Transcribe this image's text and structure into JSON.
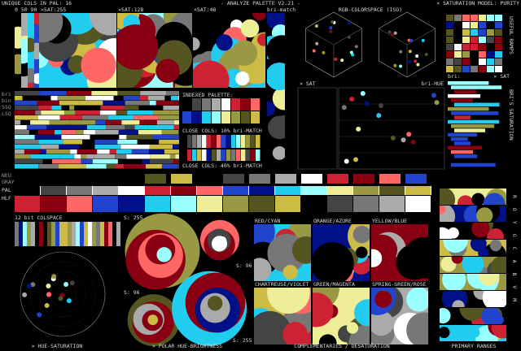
{
  "header": {
    "unique": "UNIQUE COLS IN PAL: 16",
    "title": "- ANALYZE PALETTE V2.21 -",
    "model": "× SATURATION MODEL: PURITY"
  },
  "palette": [
    "#000000",
    "#444444",
    "#777777",
    "#aaaaaa",
    "#ffffff",
    "#cc2233",
    "#880011",
    "#ff6666",
    "#2244cc",
    "#001188",
    "#22ccee",
    "#99ffff",
    "#eeee99",
    "#999944",
    "#555522",
    "#ccbb44"
  ],
  "labels": {
    "sat0": "0 50 90",
    "sat255": "×SAT:255",
    "sat128": "×SAT:128",
    "sat48": "×SAT:48",
    "brimatch": "bri-match",
    "rgb": "RGB-COLORSPACE (ISO)",
    "ramps": "USEFUL RAMPS",
    "indexed": "INDEXED PALETTE:",
    "close10": "CLOSE COLS: 10% bri-MATCH",
    "close40": "CLOSE COLS: 40% bri-MATCH",
    "xsat": "× SAT",
    "brihue": "bri-HUE",
    "bri": "bri:",
    "xsat2": "× SAT",
    "brisat": "BRI'S SATURATION",
    "left1": "bri",
    "left2": "bin",
    "left3": "55Q",
    "left4": "LSQ",
    "neu": "NEU",
    "gray": "GRAY",
    "pal": "PAL",
    "hlf": "HLF",
    "colspace": "12 bit COLSPACE",
    "s1": "S: 255",
    "s2": "S: 96",
    "s3": "S: 96",
    "s4": "S: 255",
    "hues": "ROYGCABVM"
  },
  "pairs": [
    "RED/CYAN",
    "ORANGE/AZURE",
    "YELLOW/BLUE",
    "CHARTREUSE/VIOLET",
    "GREEN/MAGENTA",
    "SPRING-GREEN/ROSE"
  ],
  "footer": [
    "× HUE-SATURATION",
    "× POLAR HUE-BRIGHTNESS",
    "COMPLEMENTARIES / DESATURATION",
    "PRIMARY RANGES"
  ]
}
